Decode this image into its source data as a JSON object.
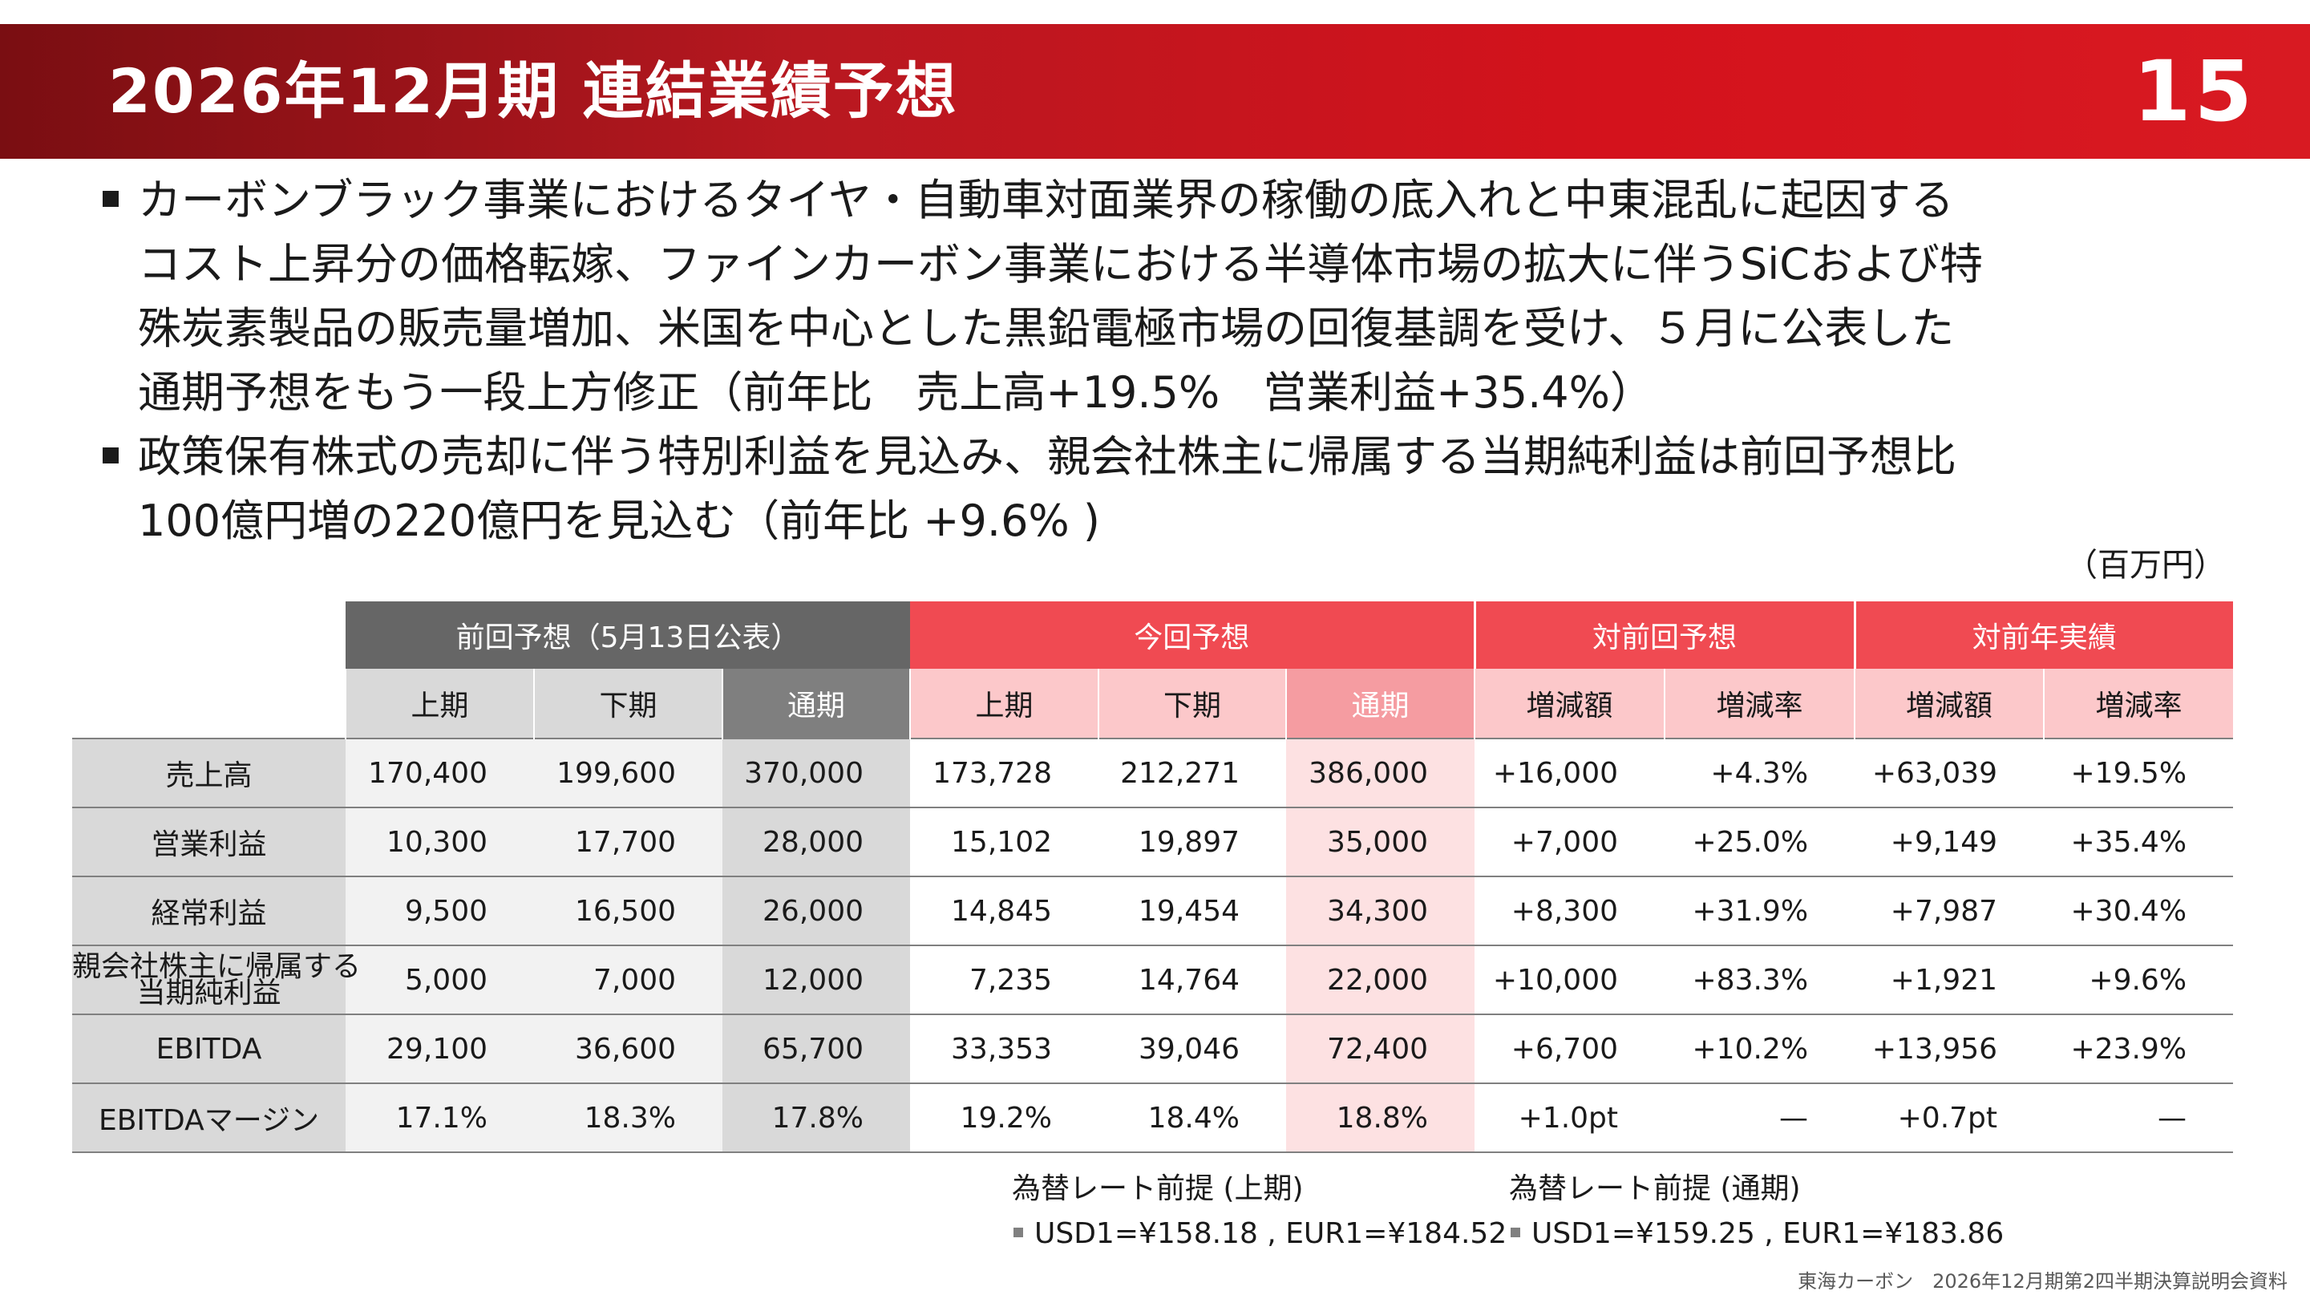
{
  "header": {
    "title": "2026年12月期 連結業績予想",
    "page_number": "15"
  },
  "bullets": [
    {
      "lines": [
        "カーボンブラック事業におけるタイヤ・自動車対面業界の稼働の底入れと中東混乱に起因する",
        "コスト上昇分の価格転嫁、ファインカーボン事業における半導体市場の拡大に伴うSiCおよび特",
        "殊炭素製品の販売量増加、米国を中心とした黒鉛電極市場の回復基調を受け、５月に公表した",
        "通期予想をもう一段上方修正（前年比　売上高+19.5%　営業利益+35.4%）"
      ]
    },
    {
      "lines": [
        "政策保有株式の売却に伴う特別利益を見込み、親会社株主に帰属する当期純利益は前回予想比",
        "100億円増の220億円を見込む（前年比 +9.6% )"
      ]
    }
  ],
  "unit": "（百万円）",
  "table": {
    "groups": {
      "previous": "前回予想（5月13日公表）",
      "current": "今回予想",
      "vs_previous": "対前回予想",
      "vs_last_year": "対前年実績"
    },
    "subheaders": [
      "上期",
      "下期",
      "通期",
      "上期",
      "下期",
      "通期",
      "増減額",
      "増減率",
      "増減額",
      "増減率"
    ],
    "rows": [
      {
        "label": "売上高",
        "label_lines": [
          "売上高"
        ],
        "values": [
          "170,400",
          "199,600",
          "370,000",
          "173,728",
          "212,271",
          "386,000",
          "+16,000",
          "+4.3%",
          "+63,039",
          "+19.5%"
        ]
      },
      {
        "label": "営業利益",
        "label_lines": [
          "営業利益"
        ],
        "values": [
          "10,300",
          "17,700",
          "28,000",
          "15,102",
          "19,897",
          "35,000",
          "+7,000",
          "+25.0%",
          "+9,149",
          "+35.4%"
        ]
      },
      {
        "label": "経常利益",
        "label_lines": [
          "経常利益"
        ],
        "values": [
          "9,500",
          "16,500",
          "26,000",
          "14,845",
          "19,454",
          "34,300",
          "+8,300",
          "+31.9%",
          "+7,987",
          "+30.4%"
        ]
      },
      {
        "label": "親会社株主に帰属する当期純利益",
        "label_lines": [
          "親会社株主に帰属する",
          "当期純利益"
        ],
        "values": [
          "5,000",
          "7,000",
          "12,000",
          "7,235",
          "14,764",
          "22,000",
          "+10,000",
          "+83.3%",
          "+1,921",
          "+9.6%"
        ]
      },
      {
        "label": "EBITDA",
        "label_lines": [
          "EBITDA"
        ],
        "values": [
          "29,100",
          "36,600",
          "65,700",
          "33,353",
          "39,046",
          "72,400",
          "+6,700",
          "+10.2%",
          "+13,956",
          "+23.9%"
        ]
      },
      {
        "label": "EBITDAマージン",
        "label_lines": [
          "EBITDAマージン"
        ],
        "values": [
          "17.1%",
          "18.3%",
          "17.8%",
          "19.2%",
          "18.4%",
          "18.8%",
          "+1.0pt",
          "—",
          "+0.7pt",
          "—"
        ]
      }
    ]
  },
  "fx_notes": {
    "first_half": {
      "title": "為替レート前提 (上期)",
      "rates": "USD1=¥158.18 , EUR1=¥184.52"
    },
    "full_year": {
      "title": "為替レート前提 (通期)",
      "rates": "USD1=¥159.25 , EUR1=¥183.86"
    }
  },
  "footer": "東海カーボン　2026年12月期第2四半期決算説明会資料",
  "colors": {
    "header_red": "#d4121c",
    "header_dark_red": "#7a0e12",
    "table_gray_header": "#666666",
    "table_red_header": "#f04a52",
    "table_pink_sub": "#fcc8ca",
    "table_pink_cell": "#fde1e2"
  }
}
